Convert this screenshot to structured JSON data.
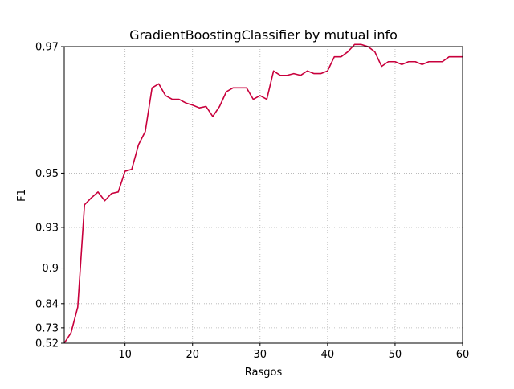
{
  "colors": {
    "series": "#c8003c",
    "grid": "#b0b0b0",
    "axis": "#000000",
    "background": "#ffffff"
  },
  "chart_data": {
    "type": "line",
    "title": "GradientBoostingClassifier by mutual info",
    "xlabel": "Rasgos",
    "ylabel": "F1",
    "xlim": [
      1,
      60
    ],
    "ylim": [
      0.52,
      0.97
    ],
    "grid": true,
    "grid_style": "dotted",
    "xticks": [
      10,
      20,
      30,
      40,
      50,
      60
    ],
    "xtick_labels": [
      "10",
      "20",
      "30",
      "40",
      "50",
      "60"
    ],
    "yticks": [
      0.52,
      0.73,
      0.84,
      0.9,
      0.93,
      0.95,
      0.97
    ],
    "ytick_labels": [
      "0.52",
      "0.73",
      "0.84",
      "0.9",
      "0.93",
      "0.95",
      "0.97"
    ],
    "series": [
      {
        "color": "#c8003c",
        "x": [
          1,
          2,
          3,
          4,
          5,
          6,
          7,
          8,
          9,
          10,
          11,
          12,
          13,
          14,
          15,
          16,
          17,
          18,
          19,
          20,
          21,
          22,
          23,
          24,
          25,
          26,
          27,
          28,
          29,
          30,
          31,
          32,
          33,
          34,
          35,
          36,
          37,
          38,
          39,
          40,
          41,
          42,
          43,
          44,
          45,
          46,
          47,
          48,
          49,
          50,
          51,
          52,
          53,
          54,
          55,
          56,
          57,
          58,
          59,
          60
        ],
        "y": [
          0.52,
          0.685,
          0.83,
          0.94,
          0.9425,
          0.9445,
          0.9415,
          0.944,
          0.9445,
          0.9505,
          0.951,
          0.9565,
          0.959,
          0.9655,
          0.966,
          0.9645,
          0.964,
          0.964,
          0.9635,
          0.9632,
          0.9628,
          0.963,
          0.9615,
          0.963,
          0.965,
          0.9655,
          0.9655,
          0.9655,
          0.964,
          0.9645,
          0.964,
          0.9675,
          0.967,
          0.967,
          0.9672,
          0.967,
          0.9675,
          0.9672,
          0.9672,
          0.9675,
          0.969,
          0.969,
          0.9695,
          0.9702,
          0.9702,
          0.97,
          0.9695,
          0.968,
          0.9685,
          0.9685,
          0.9682,
          0.9685,
          0.9685,
          0.9682,
          0.9685,
          0.9685,
          0.9685,
          0.969,
          0.969,
          0.969
        ]
      }
    ]
  }
}
